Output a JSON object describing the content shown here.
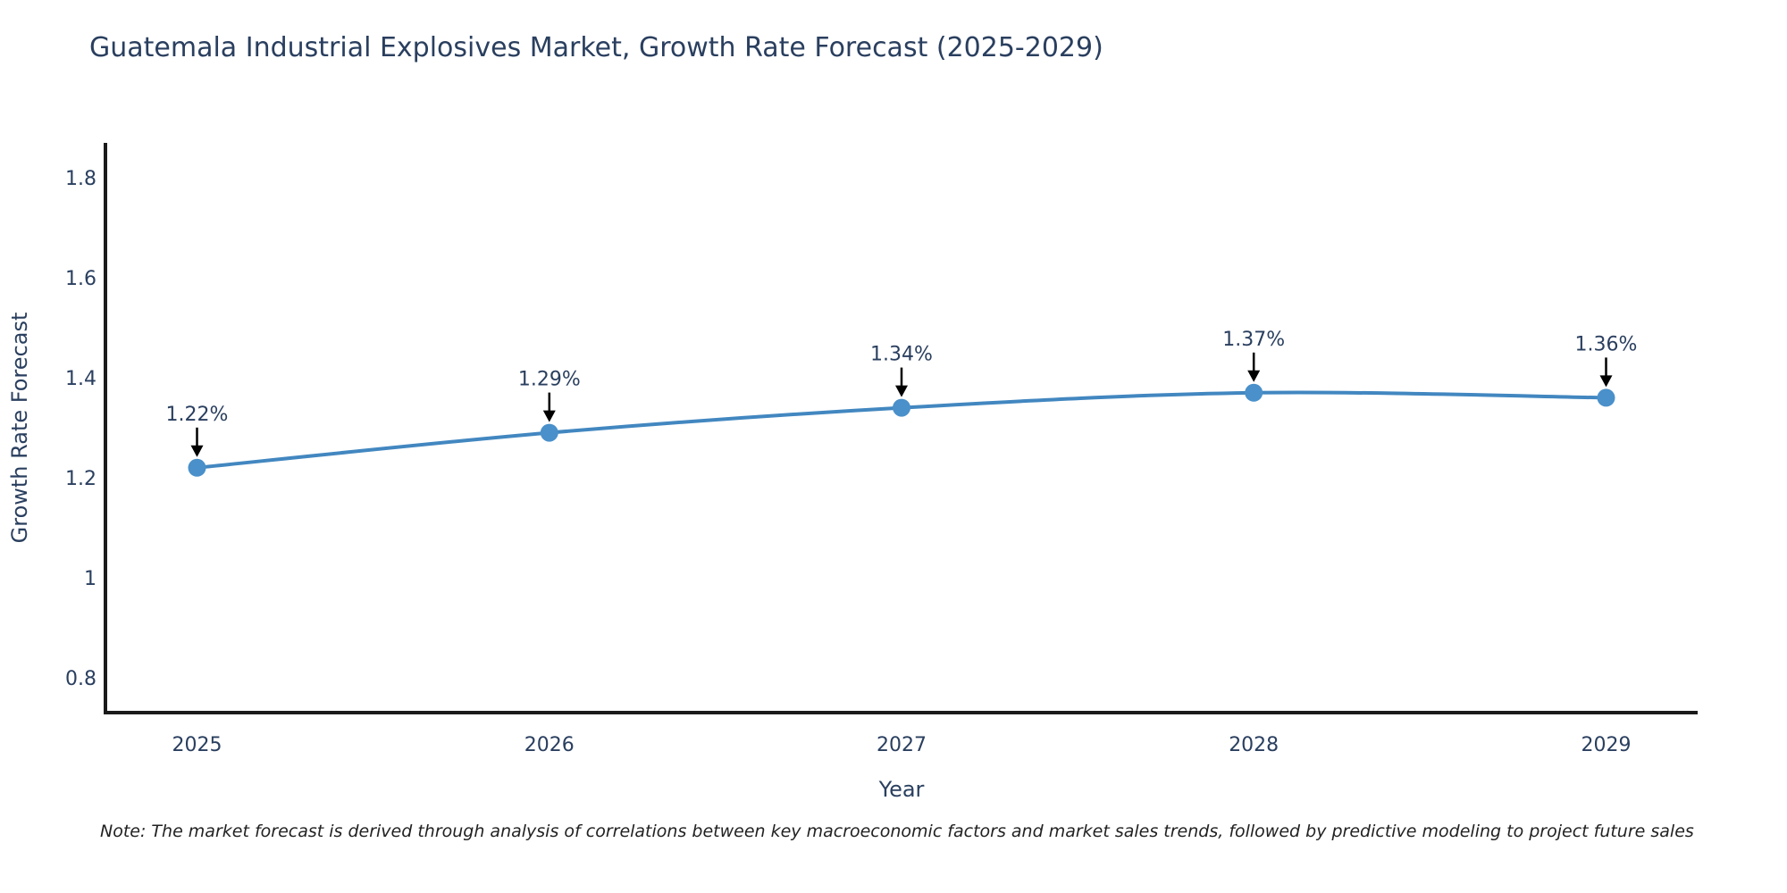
{
  "title": "Guatemala Industrial Explosives Market, Growth Rate Forecast (2025-2029)",
  "note": "Note: The market forecast is derived through analysis of correlations between key macroeconomic factors and market sales trends, followed by predictive modeling to project future sales",
  "chart_data": {
    "type": "line",
    "title": "Guatemala Industrial Explosives Market, Growth Rate Forecast (2025-2029)",
    "xlabel": "Year",
    "ylabel": "Growth Rate Forecast",
    "x": [
      2025,
      2026,
      2027,
      2028,
      2029
    ],
    "series": [
      {
        "name": "Growth Rate Forecast",
        "values": [
          1.22,
          1.29,
          1.34,
          1.37,
          1.36
        ]
      }
    ],
    "point_labels": [
      "1.22%",
      "1.29%",
      "1.34%",
      "1.37%",
      "1.36%"
    ],
    "xticks": [
      2025,
      2026,
      2027,
      2028,
      2029
    ],
    "xtick_labels": [
      "2025",
      "2026",
      "2027",
      "2028",
      "2029"
    ],
    "yticks": [
      0.8,
      1,
      1.2,
      1.4,
      1.6,
      1.8
    ],
    "ytick_labels": [
      "0.8",
      "1",
      "1.2",
      "1.4",
      "1.6",
      "1.8"
    ],
    "xlim": [
      2024.74,
      2029.26
    ],
    "ylim": [
      0.73,
      1.87
    ],
    "grid": false,
    "legend": "none",
    "line_shape": "spline",
    "colors": {
      "line": "#4287c0",
      "marker": "#4a90ca",
      "axis": "#1a1a1a",
      "tick_text": "#2a3f5f",
      "axis_title_text": "#2a3f5f",
      "annotation_text": "#2a3f5f",
      "arrow": "#000000"
    }
  }
}
